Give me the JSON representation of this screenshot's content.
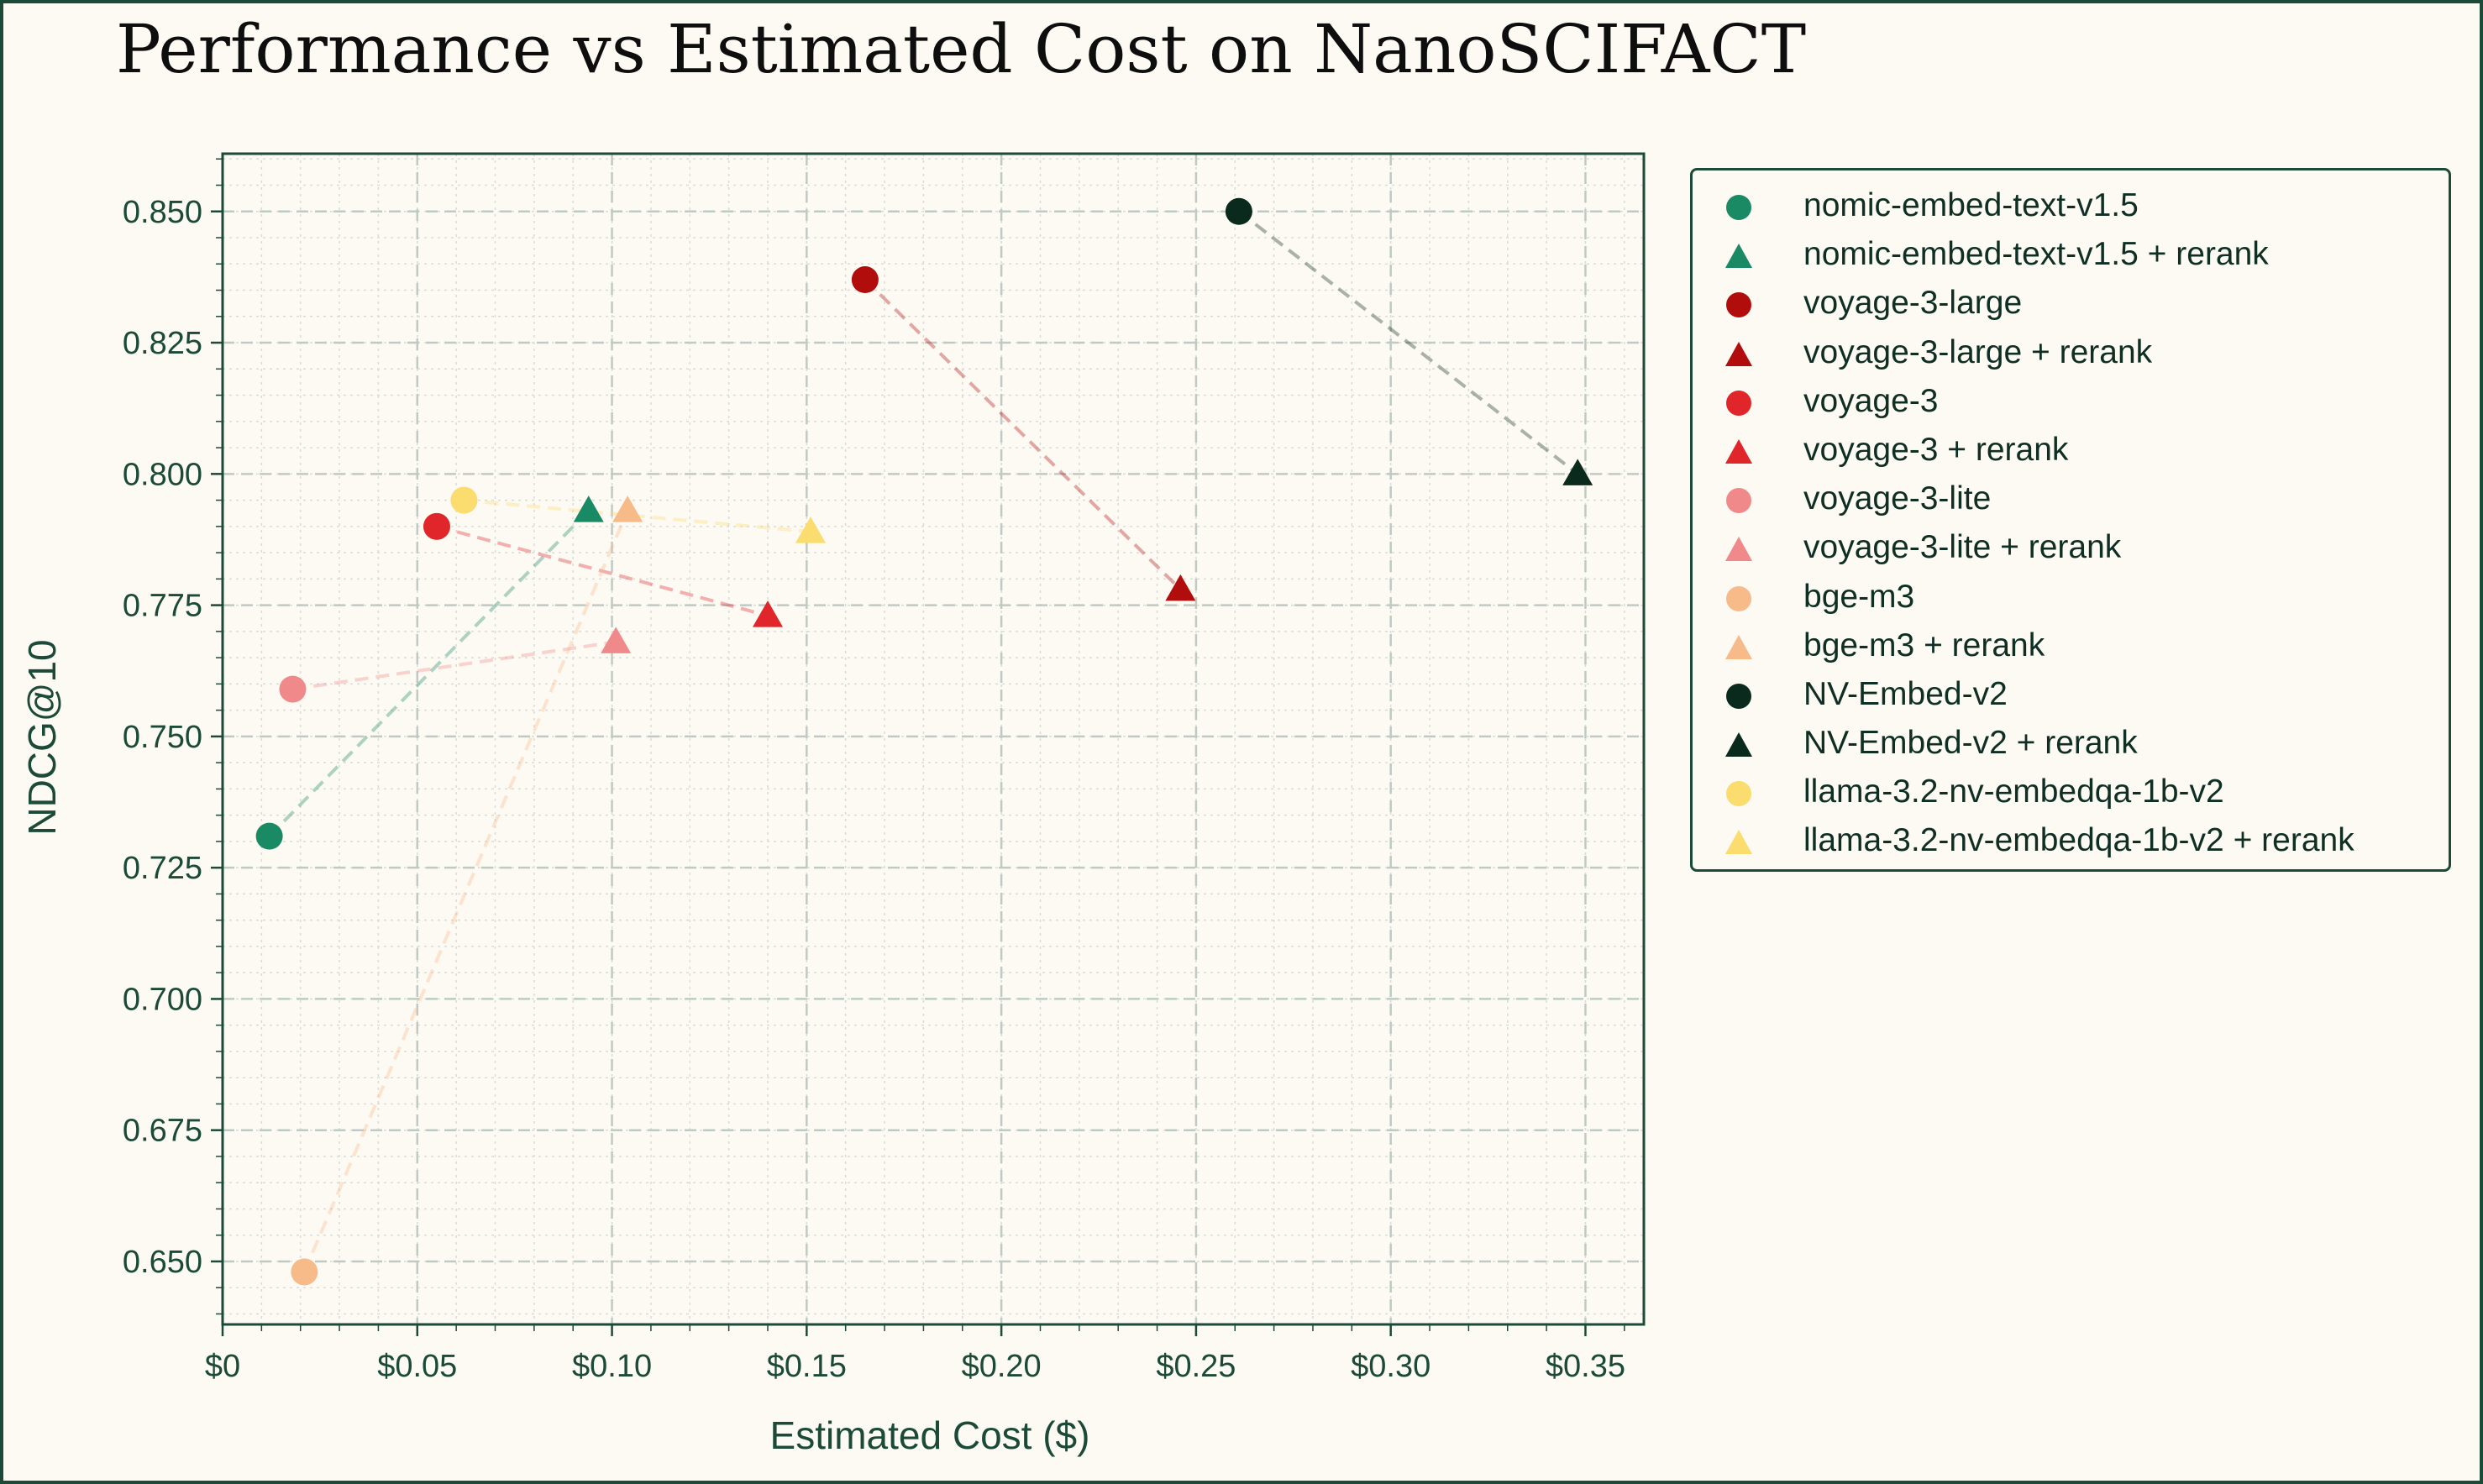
{
  "chart_data": {
    "type": "scatter",
    "title": "Performance vs Estimated Cost on NanoSCIFACT",
    "xlabel": "Estimated Cost ($)",
    "ylabel": "NDCG@10",
    "xlim": [
      0,
      0.365
    ],
    "ylim": [
      0.638,
      0.861
    ],
    "x_ticks": [
      0,
      0.05,
      0.1,
      0.15,
      0.2,
      0.25,
      0.3,
      0.35
    ],
    "x_tick_labels": [
      "$0",
      "$0.05",
      "$0.10",
      "$0.15",
      "$0.20",
      "$0.25",
      "$0.30",
      "$0.35"
    ],
    "y_ticks": [
      0.65,
      0.675,
      0.7,
      0.725,
      0.75,
      0.775,
      0.8,
      0.825,
      0.85
    ],
    "y_tick_labels": [
      "0.650",
      "0.675",
      "0.700",
      "0.725",
      "0.750",
      "0.775",
      "0.800",
      "0.825",
      "0.850"
    ],
    "grid": true,
    "legend_position": "outside-right",
    "models": [
      {
        "name": "nomic-embed-text-v1.5",
        "rerank_name": "nomic-embed-text-v1.5 + rerank",
        "color": "#1a8a64",
        "base": {
          "x": 0.012,
          "y": 0.731
        },
        "rerank": {
          "x": 0.094,
          "y": 0.793
        }
      },
      {
        "name": "voyage-3-large",
        "rerank_name": "voyage-3-large + rerank",
        "color": "#b20d0d",
        "base": {
          "x": 0.165,
          "y": 0.837
        },
        "rerank": {
          "x": 0.246,
          "y": 0.778
        }
      },
      {
        "name": "voyage-3",
        "rerank_name": "voyage-3 + rerank",
        "color": "#e0262a",
        "base": {
          "x": 0.055,
          "y": 0.79
        },
        "rerank": {
          "x": 0.14,
          "y": 0.773
        }
      },
      {
        "name": "voyage-3-lite",
        "rerank_name": "voyage-3-lite + rerank",
        "color": "#f08a8a",
        "base": {
          "x": 0.018,
          "y": 0.759
        },
        "rerank": {
          "x": 0.101,
          "y": 0.768
        }
      },
      {
        "name": "bge-m3",
        "rerank_name": "bge-m3 + rerank",
        "color": "#f7bb8a",
        "base": {
          "x": 0.021,
          "y": 0.648
        },
        "rerank": {
          "x": 0.104,
          "y": 0.793
        }
      },
      {
        "name": "NV-Embed-v2",
        "rerank_name": "NV-Embed-v2 + rerank",
        "color": "#0b2a1e",
        "base": {
          "x": 0.261,
          "y": 0.85
        },
        "rerank": {
          "x": 0.348,
          "y": 0.8
        }
      },
      {
        "name": "llama-3.2-nv-embedqa-1b-v2",
        "rerank_name": "llama-3.2-nv-embedqa-1b-v2 + rerank",
        "color": "#fadd6e",
        "base": {
          "x": 0.062,
          "y": 0.795
        },
        "rerank": {
          "x": 0.151,
          "y": 0.789
        }
      }
    ]
  }
}
